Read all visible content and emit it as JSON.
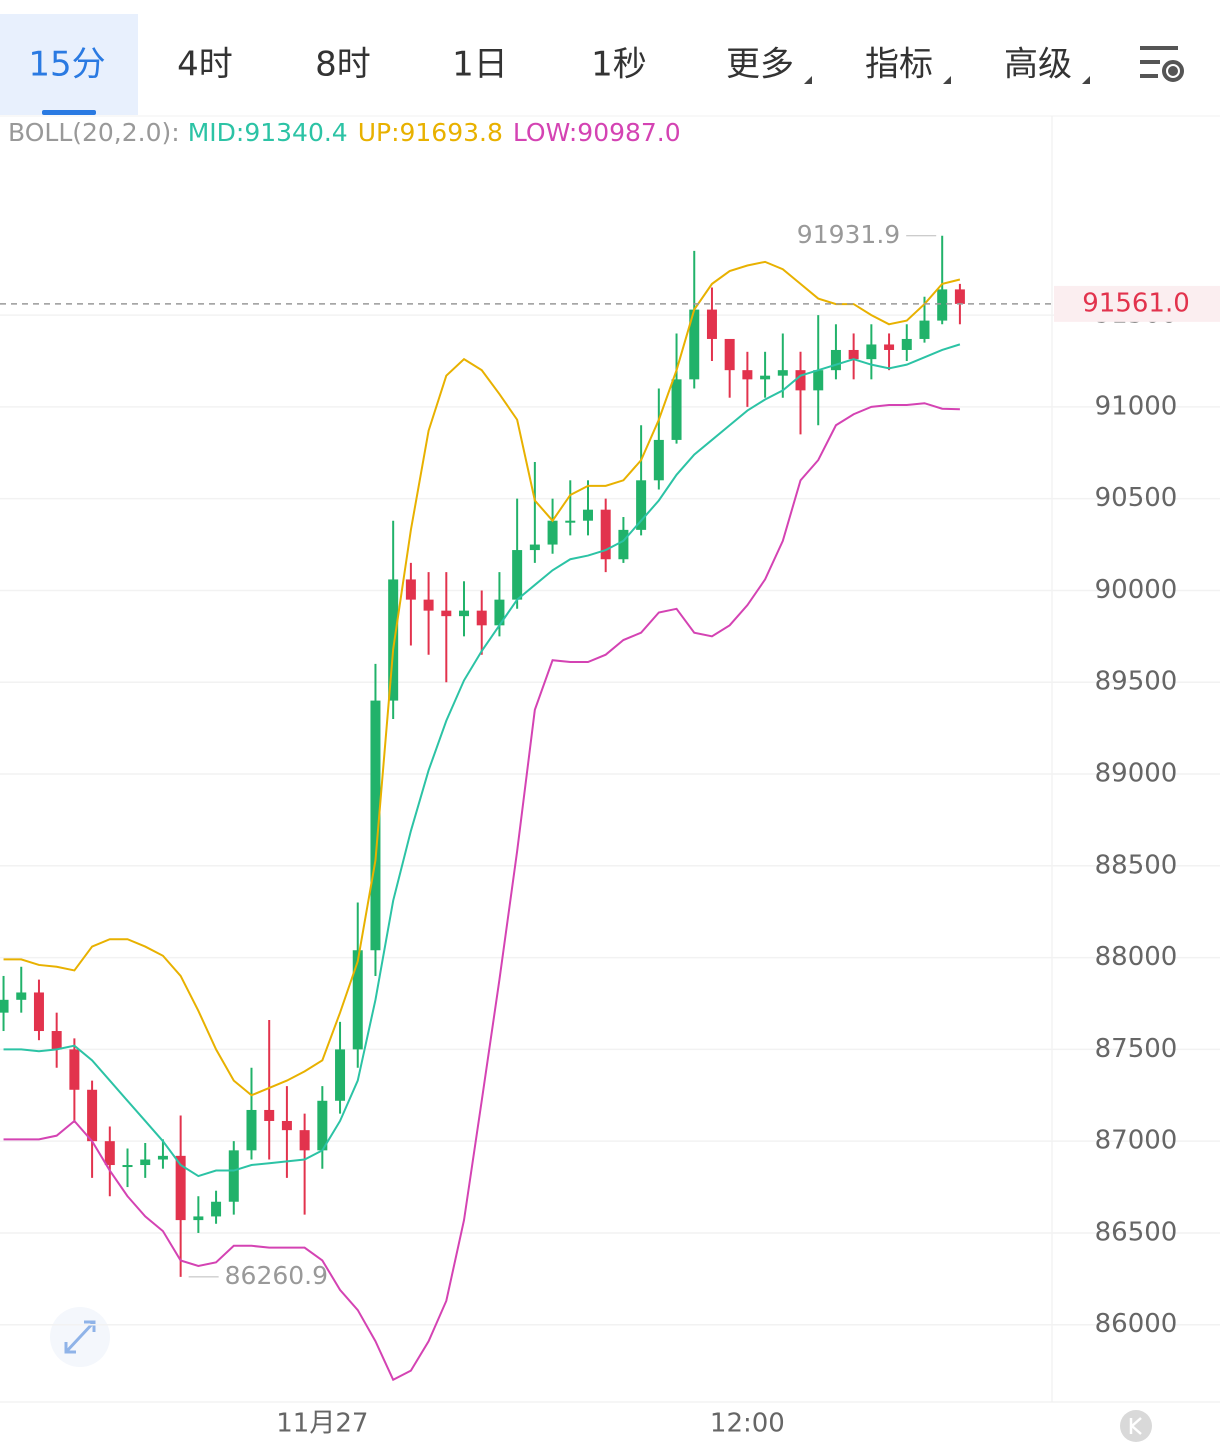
{
  "tabs": [
    "15分",
    "4时",
    "8时",
    "1日",
    "1秒",
    "更多",
    "指标",
    "高级"
  ],
  "chart_data": {
    "type": "candlestick",
    "indicator": "BOLL(20,2.0):",
    "colors": {
      "up": "#21b26a",
      "down": "#e2334d"
    },
    "xlim": [
      -0.2,
      59.2
    ],
    "xticks": [
      {
        "value": 18,
        "label": "11月27"
      },
      {
        "value": 42,
        "label": "12:00"
      }
    ],
    "ylim": [
      85590,
      92590
    ],
    "yticks": [
      86000,
      86500,
      87000,
      87500,
      88000,
      88500,
      89000,
      89500,
      90000,
      90500,
      91000,
      91500
    ],
    "grid": true,
    "last_price": {
      "value": 91561,
      "label": "91561.0"
    },
    "max_annotation": 91931.9,
    "min_annotation": 86260.9,
    "open": [
      87700,
      87770,
      87810,
      87600,
      87500,
      87280,
      87000,
      86870,
      86870,
      86900,
      86920,
      86570,
      86590,
      86670,
      86950,
      87170,
      87110,
      87060,
      86950,
      87220,
      87500,
      88040,
      89400,
      90060,
      89950,
      89890,
      89860,
      89890,
      89810,
      89950,
      90220,
      90250,
      90380,
      90380,
      90440,
      90170,
      90330,
      90600,
      90820,
      91150,
      91530,
      91370,
      91200,
      91150,
      91170,
      91200,
      91090,
      91200,
      91310,
      91260,
      91340,
      91310,
      91370,
      91470,
      91640
    ],
    "high": [
      87900,
      87950,
      87880,
      87700,
      87560,
      87330,
      87080,
      86960,
      86990,
      87010,
      87140,
      86700,
      86730,
      87000,
      87400,
      87660,
      87300,
      87150,
      87300,
      87650,
      88300,
      89600,
      90380,
      90150,
      90100,
      90100,
      90050,
      90000,
      90100,
      90500,
      90700,
      90500,
      90600,
      90600,
      90500,
      90400,
      90900,
      91100,
      91400,
      91850,
      91650,
      91350,
      91300,
      91300,
      91400,
      91300,
      91500,
      91450,
      91400,
      91450,
      91400,
      91450,
      91600,
      91931.9,
      91670
    ],
    "low": [
      87600,
      87700,
      87550,
      87400,
      87100,
      86800,
      86700,
      86750,
      86800,
      86850,
      86260.9,
      86500,
      86550,
      86600,
      86900,
      86900,
      86800,
      86600,
      86850,
      87150,
      87400,
      87900,
      89300,
      89700,
      89650,
      89500,
      89750,
      89650,
      89750,
      89900,
      90150,
      90200,
      90300,
      90300,
      90100,
      90150,
      90300,
      90550,
      90800,
      91100,
      91250,
      91050,
      91000,
      91050,
      91050,
      90850,
      90900,
      91150,
      91150,
      91150,
      91200,
      91250,
      91350,
      91450,
      91450
    ],
    "close": [
      87770,
      87810,
      87600,
      87500,
      87280,
      87000,
      86870,
      86870,
      86900,
      86920,
      86570,
      86590,
      86670,
      86950,
      87170,
      87110,
      87060,
      86950,
      87220,
      87500,
      88040,
      89400,
      90060,
      89950,
      89890,
      89860,
      89890,
      89810,
      89950,
      90220,
      90250,
      90380,
      90380,
      90440,
      90170,
      90330,
      90600,
      90820,
      91150,
      91530,
      91370,
      91200,
      91150,
      91170,
      91200,
      91090,
      91200,
      91310,
      91260,
      91340,
      91310,
      91370,
      91470,
      91640,
      91561
    ],
    "series": [
      {
        "name": "MID:91340.4",
        "color": "#2cc3a5",
        "values": [
          87500,
          87500,
          87490,
          87500,
          87520,
          87440,
          87330,
          87220,
          87110,
          87000,
          86870,
          86810,
          86840,
          86840,
          86870,
          86880,
          86890,
          86900,
          86950,
          87110,
          87330,
          87770,
          88310,
          88690,
          89020,
          89290,
          89510,
          89670,
          89810,
          89950,
          90030,
          90110,
          90170,
          90190,
          90220,
          90270,
          90380,
          90490,
          90630,
          90740,
          90820,
          90900,
          90980,
          91040,
          91090,
          91170,
          91200,
          91230,
          91260,
          91230,
          91210,
          91230,
          91270,
          91310,
          91340.4
        ]
      },
      {
        "name": "UP:91693.8",
        "color": "#e8b100",
        "values": [
          87990,
          87990,
          87960,
          87950,
          87930,
          88060,
          88100,
          88100,
          88060,
          88010,
          87900,
          87710,
          87500,
          87330,
          87250,
          87290,
          87330,
          87380,
          87440,
          87700,
          87980,
          88530,
          89680,
          90330,
          90870,
          91170,
          91260,
          91200,
          91070,
          90930,
          90490,
          90380,
          90520,
          90570,
          90570,
          90600,
          90710,
          90930,
          91200,
          91530,
          91670,
          91740,
          91770,
          91790,
          91750,
          91670,
          91590,
          91560,
          91560,
          91500,
          91450,
          91470,
          91560,
          91670,
          91693.8
        ]
      },
      {
        "name": "LOW:90987.0",
        "color": "#d443b3",
        "values": [
          87010,
          87010,
          87010,
          87030,
          87110,
          87000,
          86840,
          86700,
          86590,
          86510,
          86350,
          86320,
          86340,
          86430,
          86430,
          86420,
          86420,
          86420,
          86350,
          86190,
          86080,
          85910,
          85700,
          85750,
          85910,
          86130,
          86570,
          87220,
          87880,
          88580,
          89350,
          89620,
          89610,
          89610,
          89650,
          89730,
          89770,
          89880,
          89900,
          89770,
          89750,
          89810,
          89920,
          90060,
          90270,
          90600,
          90710,
          90900,
          90960,
          91000,
          91010,
          91010,
          91020,
          90990,
          90987
        ]
      }
    ]
  }
}
